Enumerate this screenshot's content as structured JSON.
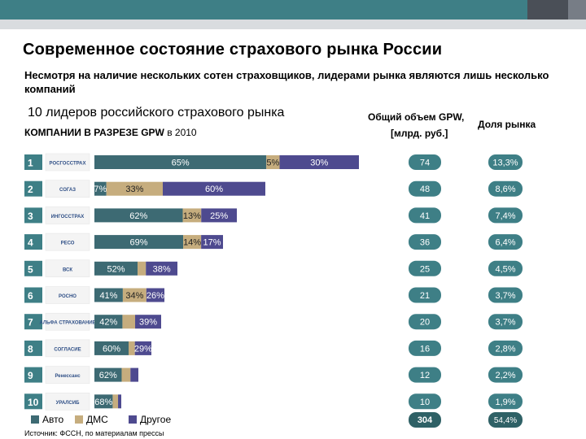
{
  "header": {
    "title": "Современное состояние страхового рынка России",
    "subtitle": "Несмотря на наличие нескольких сотен страховщиков, лидерами рынка являются лишь несколько компаний",
    "left_heading": "10 лидеров российского страхового рынка",
    "left_subheading_bold": "КОМПАНИИ В РАЗРЕЗЕ GPW",
    "left_subheading_rest": " в 2010",
    "col1_heading_line1": "Общий объем GPW,",
    "col1_heading_line2": "[млрд. руб.]",
    "col2_heading": "Доля рынка"
  },
  "colors": {
    "auto": "#3d6a73",
    "dms": "#c6ad7e",
    "other": "#4e4a8f",
    "rank_box": "#3e7f86",
    "pill": "#3e7f86"
  },
  "legend": {
    "auto": "Авто",
    "dms": "ДМС",
    "other": "Другое"
  },
  "source": "Источник: ФССН, по материалам прессы",
  "chart_data": {
    "type": "bar",
    "stacked": true,
    "orientation": "horizontal",
    "title": "КОМПАНИИ В РАЗРЕЗЕ GPW в 2010",
    "series_names": [
      "Авто",
      "ДМС",
      "Другое"
    ],
    "rows": [
      {
        "rank": "1",
        "logo": "РОСГОССТРАХ",
        "segments": [
          65,
          5,
          30
        ],
        "labels": [
          "65%",
          "5%",
          "30%"
        ],
        "gpw": "74",
        "share": "13,3%"
      },
      {
        "rank": "2",
        "logo": "СОГАЗ",
        "segments": [
          7,
          33,
          60
        ],
        "labels": [
          "7%",
          "33%",
          "60%"
        ],
        "gpw": "48",
        "share": "8,6%"
      },
      {
        "rank": "3",
        "logo": "ИНГОССТРАХ",
        "segments": [
          62,
          13,
          25
        ],
        "labels": [
          "62%",
          "13%",
          "25%"
        ],
        "gpw": "41",
        "share": "7,4%"
      },
      {
        "rank": "4",
        "logo": "РЕСО",
        "segments": [
          69,
          14,
          17
        ],
        "labels": [
          "69%",
          "14%",
          "17%"
        ],
        "gpw": "36",
        "share": "6,4%"
      },
      {
        "rank": "5",
        "logo": "ВСК",
        "segments": [
          52,
          10,
          38
        ],
        "labels": [
          "52%",
          "",
          "38%"
        ],
        "gpw": "25",
        "share": "4,5%"
      },
      {
        "rank": "6",
        "logo": "РОСНО",
        "segments": [
          41,
          34,
          26
        ],
        "labels": [
          "41%",
          "34%",
          "26%"
        ],
        "gpw": "21",
        "share": "3,7%"
      },
      {
        "rank": "7",
        "logo": "АЛЬФА СТРАХОВАНИЕ",
        "segments": [
          42,
          19,
          39
        ],
        "labels": [
          "42%",
          "",
          "39%"
        ],
        "gpw": "20",
        "share": "3,7%"
      },
      {
        "rank": "8",
        "logo": "СОГЛАСИЕ",
        "segments": [
          60,
          11,
          29
        ],
        "labels": [
          "60%",
          "",
          "29%"
        ],
        "gpw": "16",
        "share": "2,8%"
      },
      {
        "rank": "9",
        "logo": "Ренессанс",
        "segments": [
          62,
          20,
          18
        ],
        "labels": [
          "62%",
          "",
          ""
        ],
        "gpw": "12",
        "share": "2,2%"
      },
      {
        "rank": "10",
        "logo": "УРАЛСИБ",
        "segments": [
          68,
          20,
          12
        ],
        "labels": [
          "68%",
          "",
          ""
        ],
        "gpw": "10",
        "share": "1,9%"
      }
    ],
    "totals": {
      "gpw": "304",
      "share": "54,4%"
    }
  }
}
